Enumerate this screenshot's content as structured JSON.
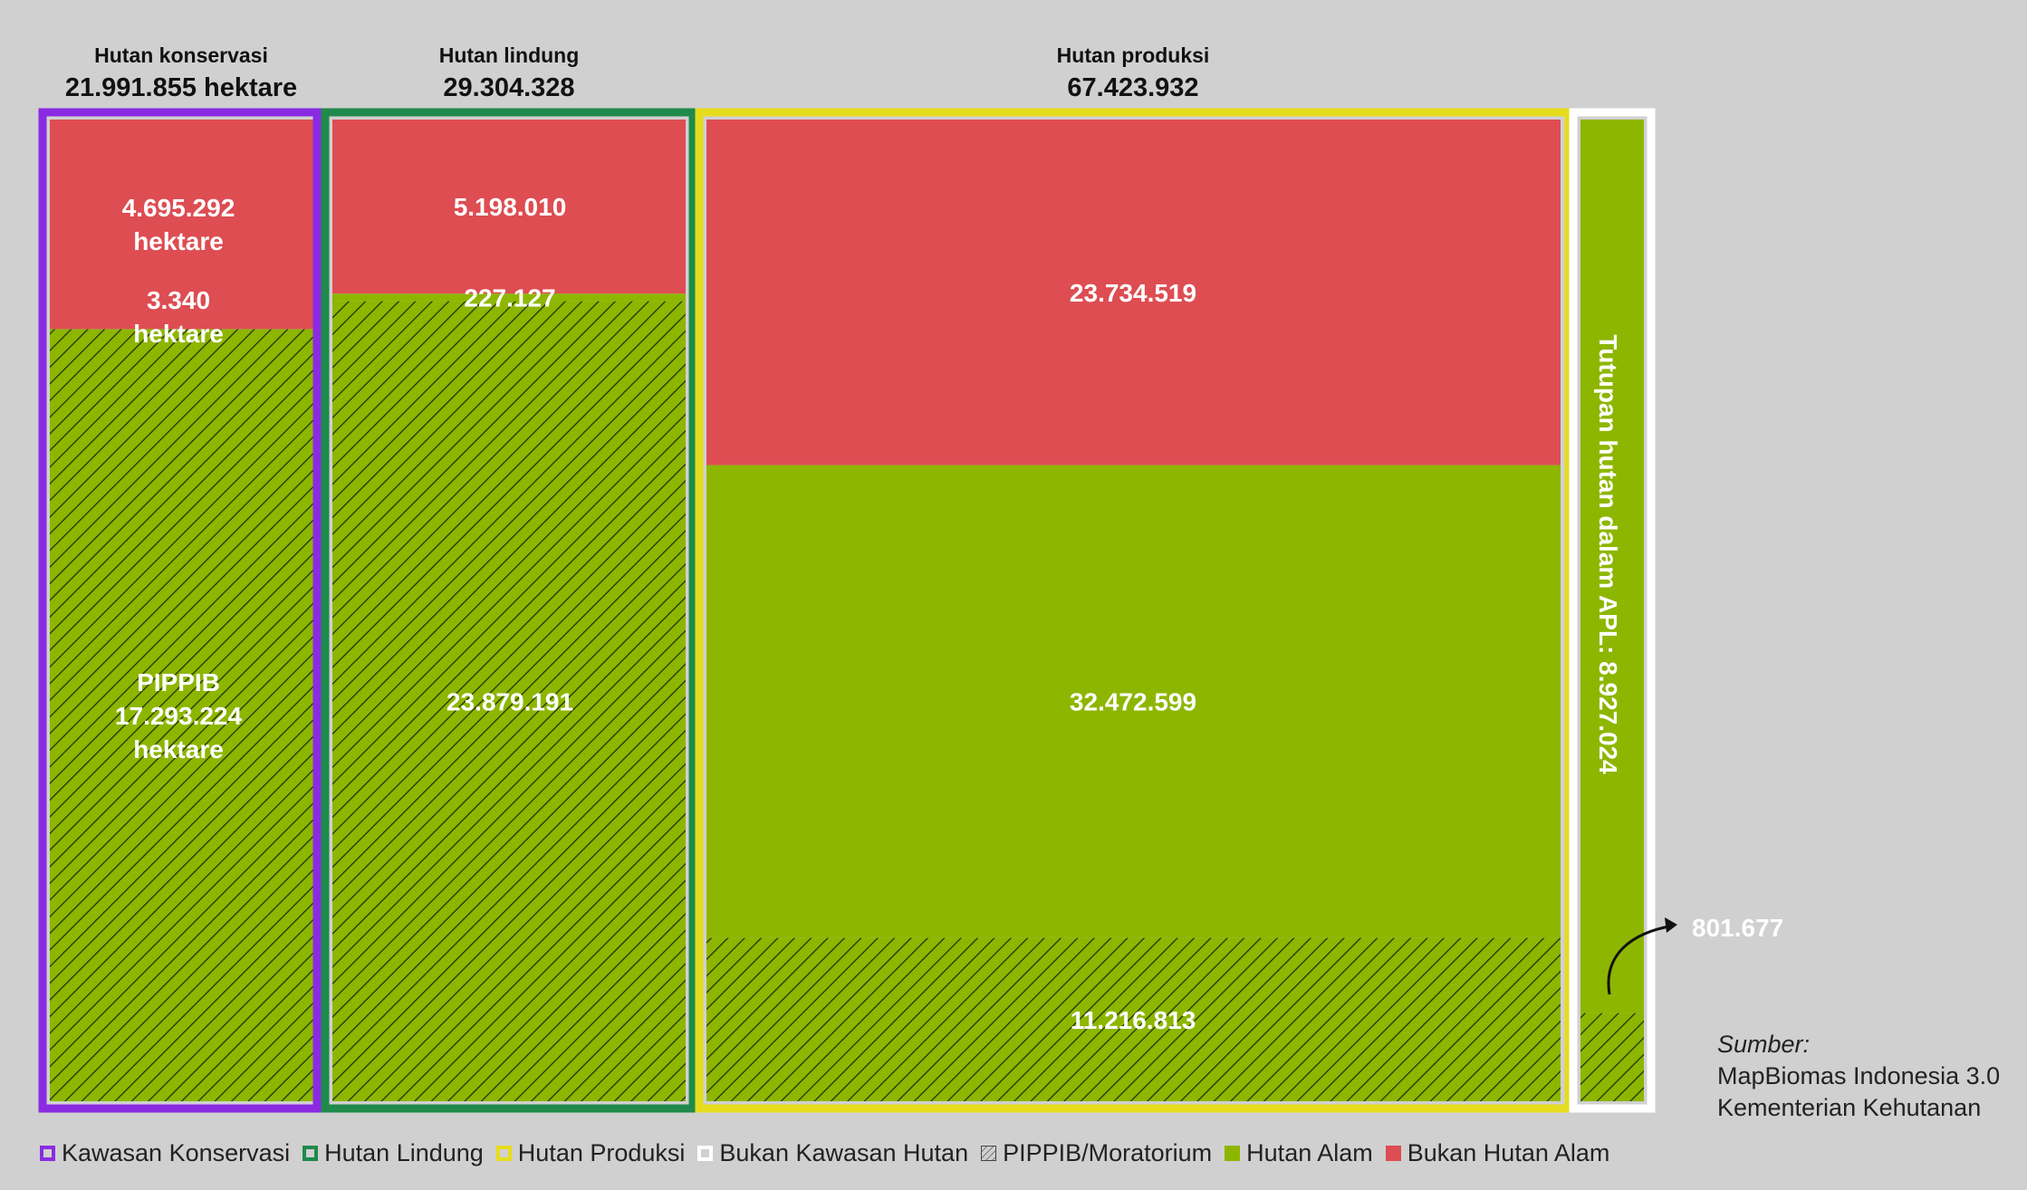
{
  "columns": [
    {
      "key": "konservasi",
      "title": "Hutan konservasi",
      "total": "21.991.855 hektare",
      "border": "#8a2be2"
    },
    {
      "key": "lindung",
      "title": "Hutan lindung",
      "total": "29.304.328",
      "border": "#1f8a4c"
    },
    {
      "key": "produksi",
      "title": "Hutan produksi",
      "total": "67.423.932",
      "border": "#e6dc1e"
    }
  ],
  "apl": {
    "title": "Tutupan hutan dalam APL: 8.927.024",
    "callout": "801.677",
    "border": "#ffffff"
  },
  "legend": [
    {
      "label": "Kawasan Konservasi",
      "swatch": "outline",
      "color": "#8a2be2"
    },
    {
      "label": "Hutan Lindung",
      "swatch": "outline",
      "color": "#1f8a4c"
    },
    {
      "label": "Hutan Produksi",
      "swatch": "outline",
      "color": "#e6dc1e"
    },
    {
      "label": "Bukan Kawasan Hutan",
      "swatch": "outline",
      "color": "#ffffff"
    },
    {
      "label": "PIPPIB/Moratorium",
      "swatch": "hatch",
      "color": "#444444"
    },
    {
      "label": "Hutan Alam",
      "swatch": "fill",
      "color": "#8db600"
    },
    {
      "label": "Bukan Hutan Alam",
      "swatch": "fill",
      "color": "#dd4d52"
    }
  ],
  "source": {
    "heading": "Sumber:",
    "lines": [
      "MapBiomas Indonesia 3.0",
      "Kementerian Kehutanan"
    ]
  },
  "chart_data": {
    "type": "bar",
    "stacked": true,
    "categories": [
      "Hutan konservasi",
      "Hutan lindung",
      "Hutan produksi",
      "Tutupan hutan dalam APL"
    ],
    "colors": {
      "bukan_hutan_alam": "#dd4d52",
      "hutan_alam": "#8db600",
      "pippib_hatch": "#1e3300"
    },
    "series": [
      {
        "name": "Bukan Hutan Alam",
        "values": [
          4695292,
          5198010,
          23734519,
          0
        ],
        "labels": [
          "4.695.292\nhektare",
          "5.198.010",
          "23.734.519",
          ""
        ]
      },
      {
        "name": "Hutan Alam",
        "values": [
          3340,
          227127,
          32472599,
          8125347
        ],
        "labels": [
          "3.340\nhektare",
          "227.127",
          "32.472.599",
          ""
        ]
      },
      {
        "name": "PIPPIB/Moratorium",
        "values": [
          17293224,
          23879191,
          11216813,
          801677
        ],
        "labels": [
          "PIPPIB\n17.293.224\nhektare",
          "23.879.191",
          "11.216.813",
          ""
        ]
      }
    ]
  }
}
